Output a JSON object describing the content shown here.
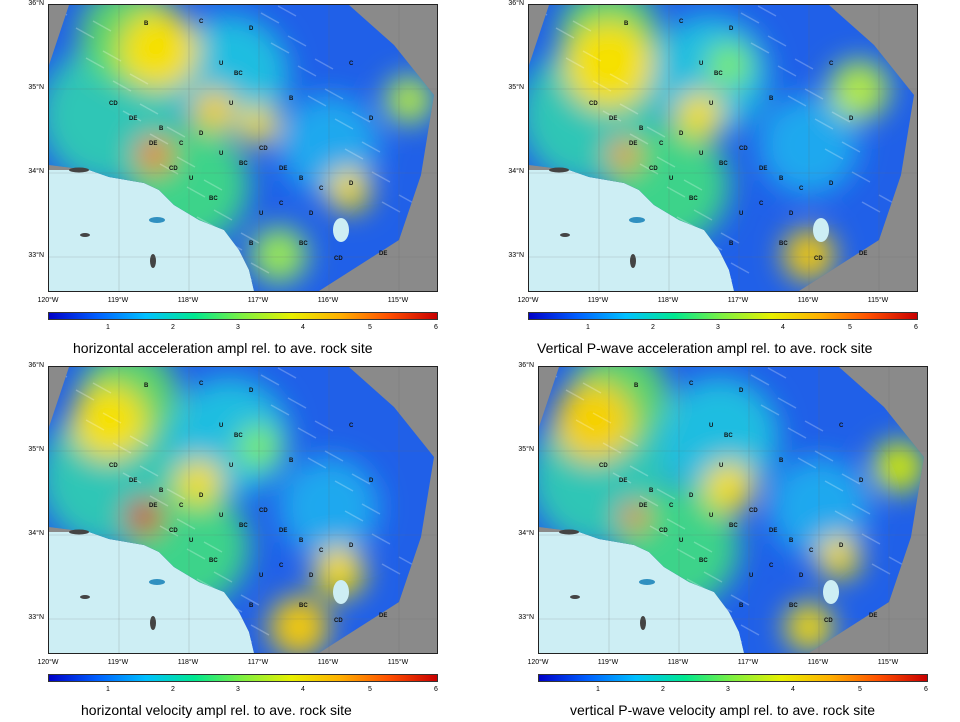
{
  "colors": {
    "land_gray": "#8a8a8a",
    "ocean": "#cdeef4",
    "frame": "#222222"
  },
  "colorbar": {
    "stops": [
      "#0000c8",
      "#0060ff",
      "#00c0ff",
      "#00e890",
      "#80f040",
      "#e8f000",
      "#ffb000",
      "#ff5000",
      "#c80000"
    ],
    "ticks": [
      "1",
      "2",
      "3",
      "4",
      "5",
      "6"
    ]
  },
  "axes": {
    "lat_labels": [
      "36°N",
      "35°N",
      "34°N",
      "33°N"
    ],
    "lon_labels": [
      "120°W",
      "119°W",
      "118°W",
      "117°W",
      "116°W",
      "115°W"
    ]
  },
  "panels": [
    {
      "caption": "horizontal acceleration ampl rel. to ave. rock site"
    },
    {
      "caption": "Vertical P-wave acceleration ampl rel. to ave. rock site"
    },
    {
      "caption": "horizontal velocity ampl rel. to ave. rock site"
    },
    {
      "caption": "vertical P-wave velocity ampl rel. to ave. rock site"
    }
  ],
  "site_codes": [
    "B",
    "C",
    "D",
    "U",
    "BC",
    "CD",
    "DE"
  ]
}
